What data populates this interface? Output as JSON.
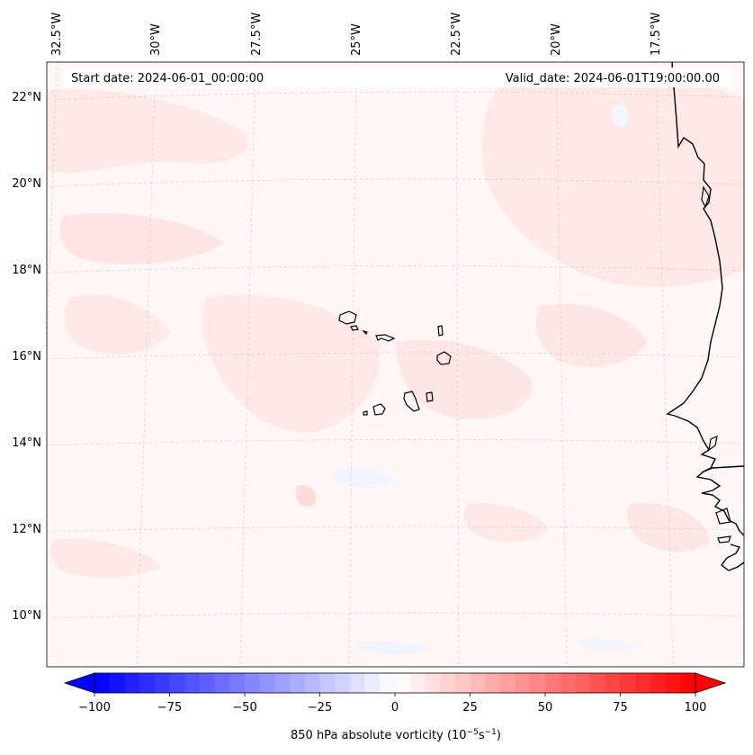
{
  "map": {
    "start_date": "Start date: 2024-06-01_00:00:00",
    "valid_date": "Valid_date: 2024-06-01T19:00:00.00",
    "lon_labels": [
      "32.5°W",
      "30°W",
      "27.5°W",
      "25°W",
      "22.5°W",
      "20°W",
      "17.5°W"
    ],
    "lat_labels": [
      "22°N",
      "20°N",
      "18°N",
      "16°N",
      "14°N",
      "12°N",
      "10°N"
    ],
    "colors": {
      "field_background": "#fff6f6",
      "positive_patch": "#ffe6e6",
      "negative_patch": "#f4f6ff",
      "coastline": "#000000",
      "gridline": "#c8c8c8"
    }
  },
  "colorbar": {
    "label": "850 hPa absolute vorticity (10",
    "label_exp": "−5",
    "label_mid": "s",
    "label_exp2": "−1",
    "label_end": ")",
    "min": -100,
    "max": 100,
    "step": 5,
    "ticks": [
      "−100",
      "−75",
      "−50",
      "−25",
      "0",
      "25",
      "50",
      "75",
      "100"
    ],
    "tick_values": [
      -100,
      -75,
      -50,
      -25,
      0,
      25,
      50,
      75,
      100
    ],
    "colormap": "bwr"
  }
}
